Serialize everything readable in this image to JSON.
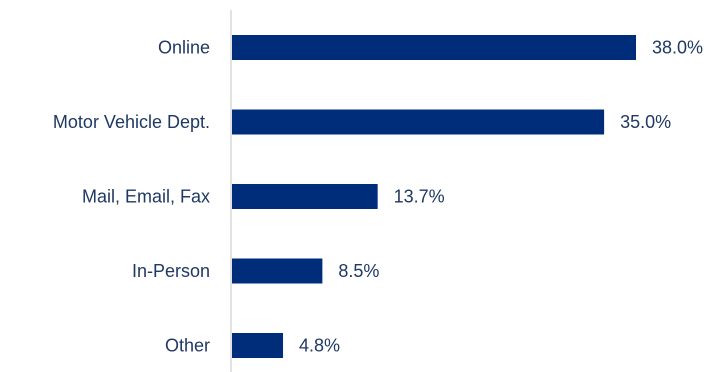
{
  "chart_data": {
    "type": "bar",
    "orientation": "horizontal",
    "categories": [
      "Online",
      "Motor Vehicle Dept.",
      "Mail, Email, Fax",
      "In-Person",
      "Other"
    ],
    "values": [
      38.0,
      35.0,
      13.7,
      8.5,
      4.8
    ],
    "value_labels": [
      "38.0%",
      "35.0%",
      "13.7%",
      "8.5%",
      "4.8%"
    ],
    "title": "",
    "xlabel": "",
    "ylabel": "",
    "grid": false,
    "legend": "none",
    "colors": {
      "bar": "#002d7a",
      "axis": "#d9d9d9",
      "text": "#1f3864"
    }
  }
}
